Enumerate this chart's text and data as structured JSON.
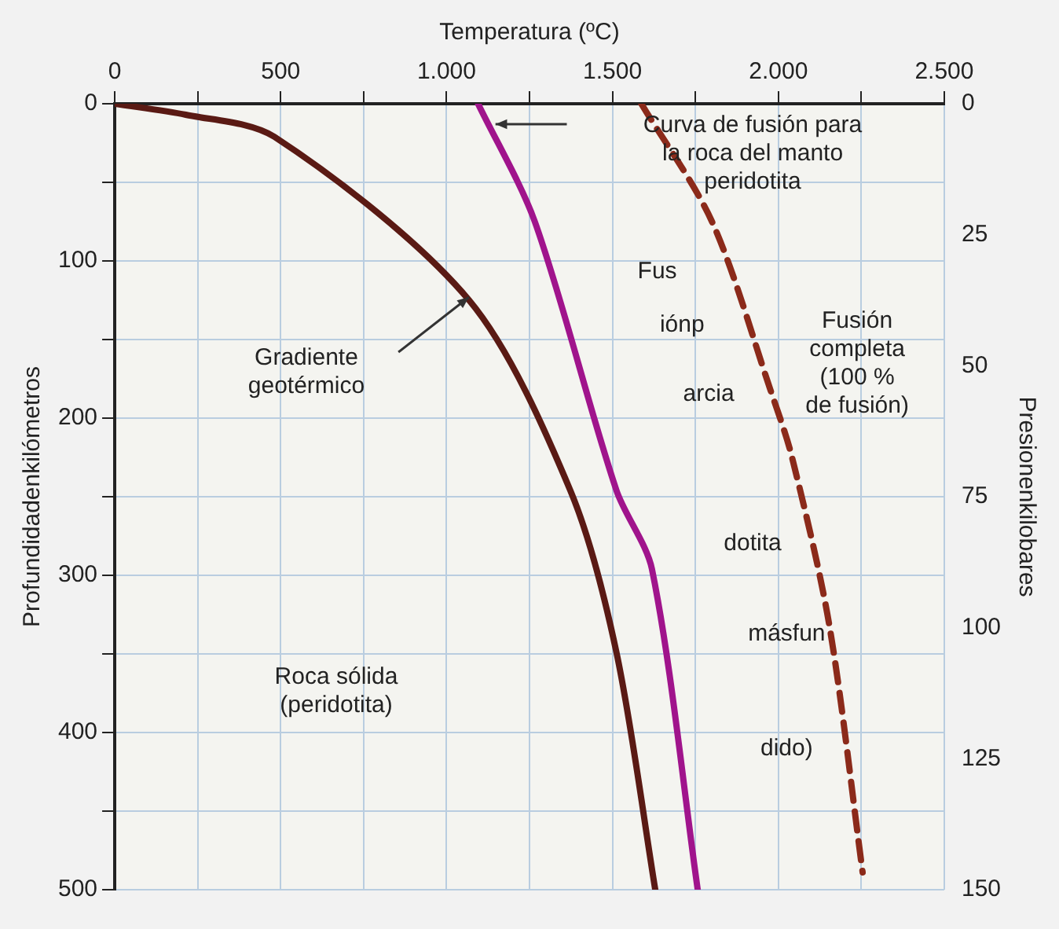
{
  "chart_data": {
    "type": "line",
    "xlabel": "Temperatura (ºC)",
    "ylabel": "Profundidadenkilómetros",
    "y2label": "Presionenkilobares",
    "series": [
      {
        "color": "#5a1a14",
        "x": [
          0,
          214,
          481,
          1068,
          1373,
          1512,
          1629
        ],
        "values": [
          0,
          7,
          21,
          125,
          246,
          349,
          500
        ]
      },
      {
        "color": "#a0148c",
        "x": [
          1095,
          1266,
          1512,
          1619,
          1757
        ],
        "values": [
          0,
          75,
          246,
          296,
          500
        ]
      },
      {
        "color": "#8b2a1a",
        "line_style": "dashed",
        "x": [
          1587,
          1800,
          1976,
          2040,
          2153,
          2254
        ],
        "values": [
          0,
          75,
          182,
          224,
          331,
          489
        ]
      }
    ],
    "xlim": [
      0,
      2500
    ],
    "xticks": [
      0,
      {
        "value": 250,
        "label": null
      },
      {
        "value": 500,
        "label": "500"
      },
      {
        "value": 750,
        "label": null
      },
      {
        "value": 1000,
        "label": "1.000"
      },
      {
        "value": 1250,
        "label": null
      },
      {
        "value": 1500,
        "label": "1.500"
      },
      {
        "value": 1750,
        "label": null
      },
      {
        "value": 2000,
        "label": "2.000"
      },
      {
        "value": 2250,
        "label": null
      },
      {
        "value": 2500,
        "label": "2.500"
      }
    ],
    "ylim": [
      500,
      0
    ],
    "yticks": [
      0,
      {
        "value": 50,
        "label": null
      },
      100,
      {
        "value": 150,
        "label": null
      },
      200,
      {
        "value": 250,
        "label": null
      },
      300,
      {
        "value": 350,
        "label": null
      },
      400,
      {
        "value": 450,
        "label": null
      },
      500
    ],
    "y2lim": [
      150,
      0
    ],
    "y2ticks": [
      0,
      25,
      50,
      75,
      100,
      125,
      150
    ],
    "grid": true,
    "legend": false,
    "marker": "none",
    "annotations": [
      "Curva de fusión para\nla roca del manto\nperidotita",
      "Fus",
      "iónp",
      "arcia",
      "dotita",
      "másfun",
      "dido)",
      "Fusión\ncompleta\n(100 %\nde fusión)",
      "Gradiente\ngeotérmico",
      "Roca sólida\n(peridotita)"
    ]
  }
}
